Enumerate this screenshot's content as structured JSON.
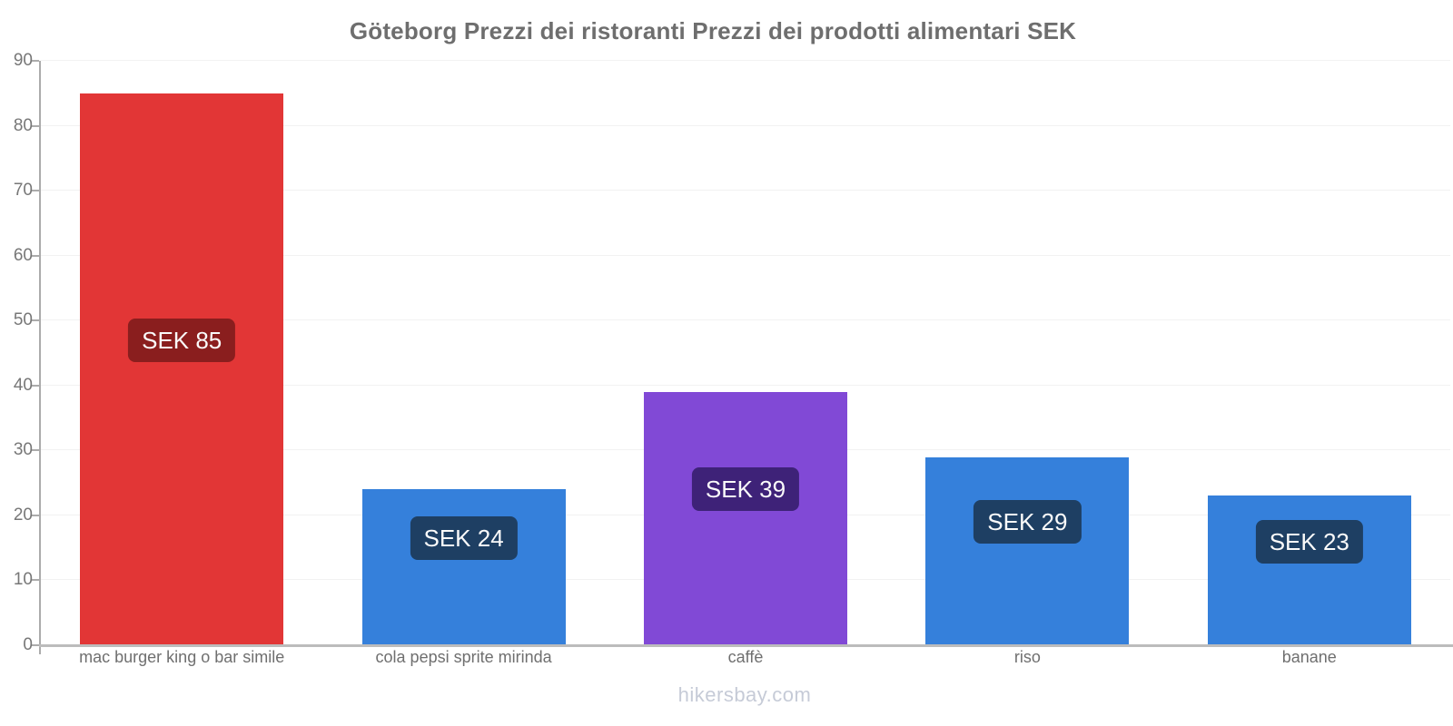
{
  "page": {
    "footer": "hikersbay.com"
  },
  "chart_data": {
    "type": "bar",
    "title": "Göteborg Prezzi dei ristoranti Prezzi dei prodotti alimentari SEK",
    "currency": "SEK",
    "categories": [
      "mac burger king o bar simile",
      "cola pepsi sprite mirinda",
      "caffè",
      "riso",
      "banane"
    ],
    "values": [
      85,
      24,
      39,
      29,
      23
    ],
    "value_labels": [
      "SEK 85",
      "SEK 24",
      "SEK 39",
      "SEK 29",
      "SEK 23"
    ],
    "bar_colors": [
      "#e23636",
      "#3580db",
      "#8149d6",
      "#3580db",
      "#3580db"
    ],
    "badge_colors": [
      "#8a1e1e",
      "#1e3f63",
      "#3e2278",
      "#1e3f63",
      "#1e3f63"
    ],
    "ylim": [
      0,
      90
    ],
    "yticks": [
      0,
      10,
      20,
      30,
      40,
      50,
      60,
      70,
      80,
      90
    ],
    "xlabel": "",
    "ylabel": "",
    "grid": "horizontal",
    "legend": false,
    "watermark": "hikersbay.com"
  },
  "colors": {
    "axis_line": "#ababab",
    "baseline": "#bcbcbc",
    "gridline": "#f2f2f2",
    "title_text": "#6e6e6e",
    "tick_text": "#777777",
    "category_text": "#6f6f6f",
    "badge_text": "#fafafa",
    "footer_text": "#c6cbd7",
    "background": "#ffffff"
  }
}
